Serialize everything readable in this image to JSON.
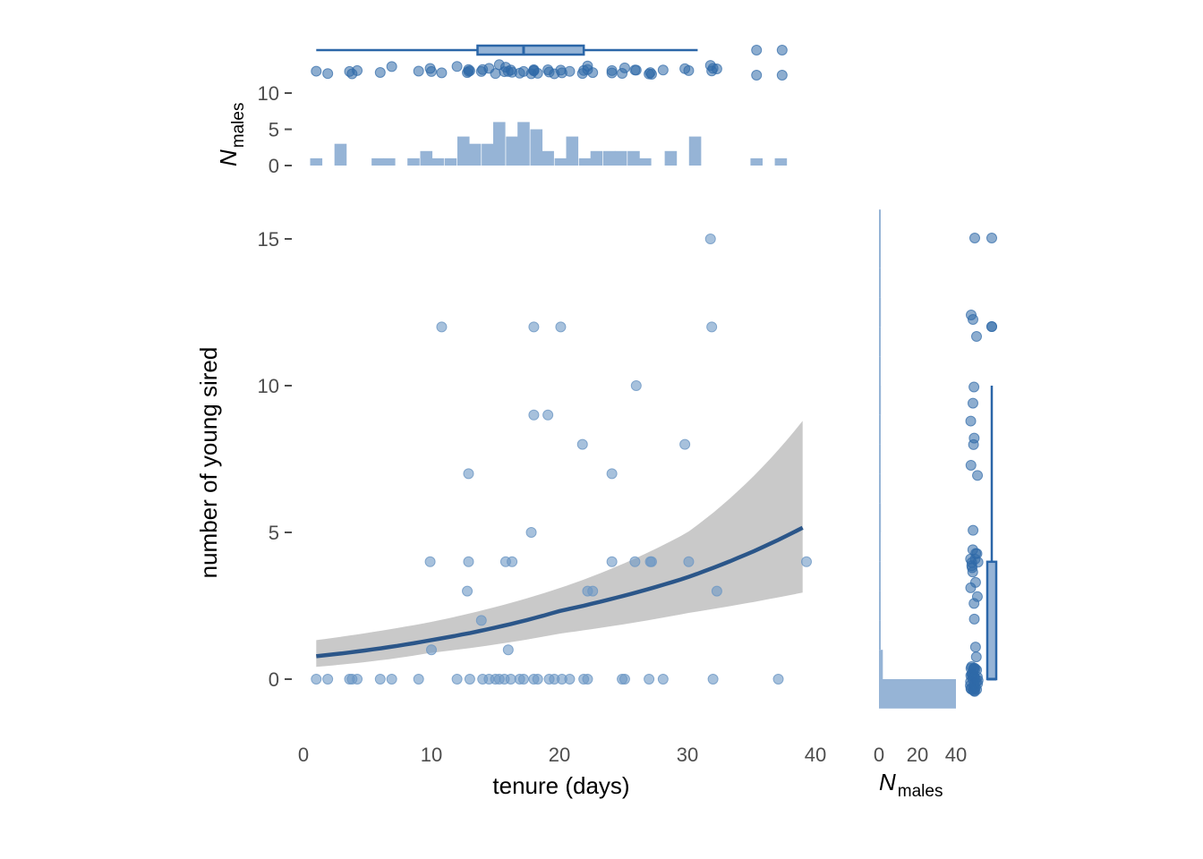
{
  "colors": {
    "point": "#6d97c4",
    "point_dark": "#2f6aa8",
    "fit_line": "#2b5689",
    "ribbon": "#c9c9c9",
    "hist_fill": "#96b4d6",
    "box_stroke": "#2b66a8",
    "axis_text": "#4d4d4d"
  },
  "main": {
    "xlabel": "tenure (days)",
    "ylabel": "number of young sired",
    "x_ticks": [
      "0",
      "10",
      "20",
      "30",
      "40"
    ],
    "y_ticks": [
      "0",
      "5",
      "10",
      "15"
    ]
  },
  "top_margin": {
    "ylabel_main": "N",
    "ylabel_sub": "males",
    "y_ticks": [
      "0",
      "5",
      "10"
    ]
  },
  "right_margin": {
    "xlabel_main": "N",
    "xlabel_sub": "males",
    "x_ticks": [
      "0",
      "20",
      "40"
    ]
  },
  "chart_data": [
    {
      "type": "scatter",
      "panel": "main",
      "xlabel": "tenure (days)",
      "ylabel": "number of young sired",
      "xlim": [
        0,
        40
      ],
      "ylim": [
        0,
        15
      ],
      "points": [
        [
          1.0,
          0
        ],
        [
          1.9,
          0
        ],
        [
          3.6,
          0
        ],
        [
          3.8,
          0
        ],
        [
          4.2,
          0
        ],
        [
          6.0,
          0
        ],
        [
          6.9,
          0
        ],
        [
          9.0,
          0
        ],
        [
          12.0,
          0
        ],
        [
          13.0,
          0
        ],
        [
          14.0,
          0
        ],
        [
          14.5,
          0
        ],
        [
          15.0,
          0
        ],
        [
          15.3,
          0
        ],
        [
          15.7,
          0
        ],
        [
          16.2,
          0
        ],
        [
          16.9,
          0
        ],
        [
          17.2,
          0
        ],
        [
          18.0,
          0
        ],
        [
          18.3,
          0
        ],
        [
          19.2,
          0
        ],
        [
          19.6,
          0
        ],
        [
          20.2,
          0
        ],
        [
          20.8,
          0
        ],
        [
          21.9,
          0
        ],
        [
          22.2,
          0
        ],
        [
          24.9,
          0
        ],
        [
          25.1,
          0
        ],
        [
          27.0,
          0
        ],
        [
          28.1,
          0
        ],
        [
          32.0,
          0
        ],
        [
          37.1,
          0
        ],
        [
          10.0,
          1
        ],
        [
          16.0,
          1
        ],
        [
          13.9,
          2
        ],
        [
          12.8,
          3
        ],
        [
          22.2,
          3
        ],
        [
          22.6,
          3
        ],
        [
          32.3,
          3
        ],
        [
          9.9,
          4
        ],
        [
          12.9,
          4
        ],
        [
          15.8,
          4
        ],
        [
          16.3,
          4
        ],
        [
          24.1,
          4
        ],
        [
          25.9,
          4
        ],
        [
          27.1,
          4
        ],
        [
          27.2,
          4
        ],
        [
          30.1,
          4
        ],
        [
          39.3,
          4
        ],
        [
          17.8,
          5
        ],
        [
          12.9,
          7
        ],
        [
          24.1,
          7
        ],
        [
          21.8,
          8
        ],
        [
          29.8,
          8
        ],
        [
          18.0,
          9
        ],
        [
          19.1,
          9
        ],
        [
          26.0,
          10
        ],
        [
          10.8,
          12
        ],
        [
          18.0,
          12
        ],
        [
          20.1,
          12
        ],
        [
          31.9,
          12
        ],
        [
          31.8,
          15
        ]
      ],
      "fit": {
        "type": "exponential",
        "x_range": [
          1,
          39
        ],
        "line": [
          [
            1,
            0.78
          ],
          [
            10,
            1.33
          ],
          [
            20,
            2.32
          ],
          [
            30,
            3.47
          ],
          [
            39,
            5.16
          ]
        ],
        "ribbon_upper": [
          [
            1,
            1.33
          ],
          [
            10,
            1.95
          ],
          [
            20,
            3.1
          ],
          [
            30,
            5.0
          ],
          [
            39,
            8.8
          ]
        ],
        "ribbon_lower": [
          [
            1,
            0.42
          ],
          [
            10,
            0.9
          ],
          [
            20,
            1.55
          ],
          [
            30,
            2.25
          ],
          [
            39,
            2.95
          ]
        ]
      }
    },
    {
      "type": "bar",
      "panel": "top-histogram",
      "ylabel": "N males",
      "ylim": [
        0,
        10
      ],
      "bin_width": 0.95,
      "bins": [
        [
          1.0,
          1
        ],
        [
          2.9,
          3
        ],
        [
          5.8,
          1
        ],
        [
          6.7,
          1
        ],
        [
          8.6,
          1
        ],
        [
          9.6,
          2
        ],
        [
          10.5,
          1
        ],
        [
          11.5,
          1
        ],
        [
          12.5,
          4
        ],
        [
          13.4,
          3
        ],
        [
          14.4,
          3
        ],
        [
          15.3,
          6
        ],
        [
          16.3,
          4
        ],
        [
          17.2,
          6
        ],
        [
          18.2,
          5
        ],
        [
          19.1,
          2
        ],
        [
          20.1,
          1
        ],
        [
          21.0,
          4
        ],
        [
          22.0,
          1
        ],
        [
          22.9,
          2
        ],
        [
          23.9,
          2
        ],
        [
          24.8,
          2
        ],
        [
          25.8,
          2
        ],
        [
          26.7,
          1
        ],
        [
          28.7,
          2
        ],
        [
          30.6,
          4
        ],
        [
          35.4,
          1
        ],
        [
          37.3,
          1
        ]
      ]
    },
    {
      "type": "bar",
      "panel": "right-histogram",
      "xlabel": "N males",
      "xlim": [
        0,
        40
      ],
      "bins": [
        [
          -1,
          0,
          40
        ],
        [
          0,
          1,
          2
        ],
        [
          1,
          2,
          0
        ],
        [
          2,
          3,
          0
        ],
        [
          3,
          4,
          0
        ],
        [
          4,
          5,
          0
        ],
        [
          5,
          6,
          1
        ],
        [
          6,
          7,
          0
        ],
        [
          7,
          8,
          0
        ],
        [
          8,
          9,
          0
        ],
        [
          9,
          10,
          1
        ],
        [
          10,
          11,
          0
        ],
        [
          11,
          12,
          0
        ],
        [
          12,
          13,
          1
        ],
        [
          13,
          14,
          0
        ],
        [
          14,
          15,
          0
        ],
        [
          15,
          16,
          0
        ]
      ]
    },
    {
      "type": "box",
      "panel": "top-boxplot",
      "axis": "tenure (days)",
      "whisker_low": 1.0,
      "q1": 13.6,
      "median": 17.2,
      "q3": 21.9,
      "whisker_high": 30.8,
      "outliers": [
        35.4,
        37.4
      ]
    },
    {
      "type": "box",
      "panel": "right-boxplot",
      "axis": "number of young sired",
      "whisker_low": 0,
      "q1": 0,
      "median": 0,
      "q3": 4,
      "whisker_high": 10,
      "outliers": [
        12,
        15
      ]
    }
  ]
}
